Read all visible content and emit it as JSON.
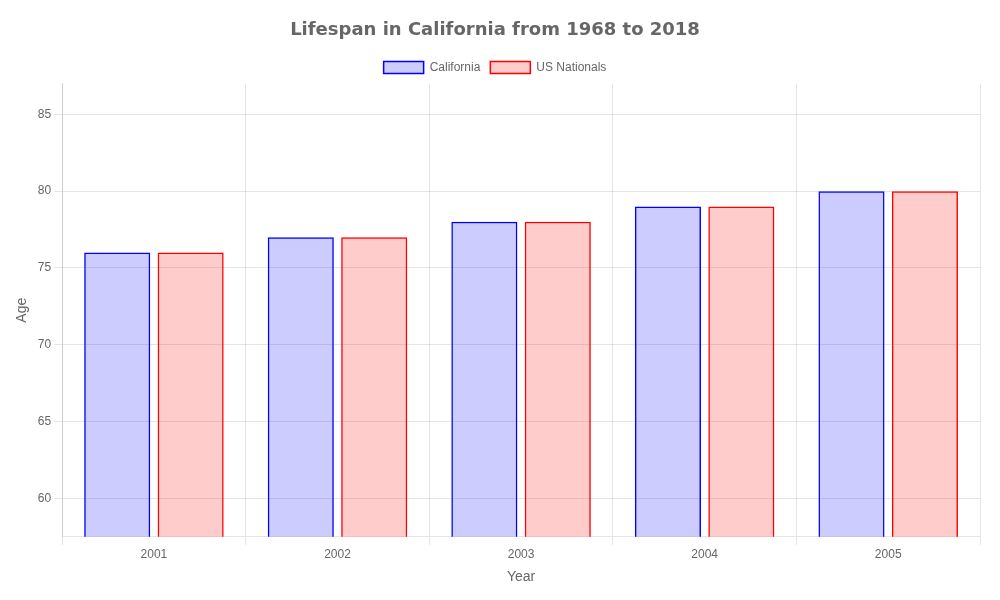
{
  "chart_data": {
    "type": "bar",
    "title": "Lifespan in California from 1968 to 2018",
    "x_label": "Year",
    "y_label": "Age",
    "categories": [
      "2001",
      "2002",
      "2003",
      "2004",
      "2005"
    ],
    "series": [
      {
        "name": "California",
        "color": "#0000ff",
        "values": [
          76,
          77,
          78,
          79,
          80
        ]
      },
      {
        "name": "US Nationals",
        "color": "#ff0000",
        "values": [
          76,
          77,
          78,
          79,
          80
        ]
      }
    ],
    "ylim": [
      57.5,
      87
    ],
    "yticks": [
      60,
      65,
      70,
      75,
      80,
      85
    ],
    "grid": true,
    "legend": "top"
  }
}
